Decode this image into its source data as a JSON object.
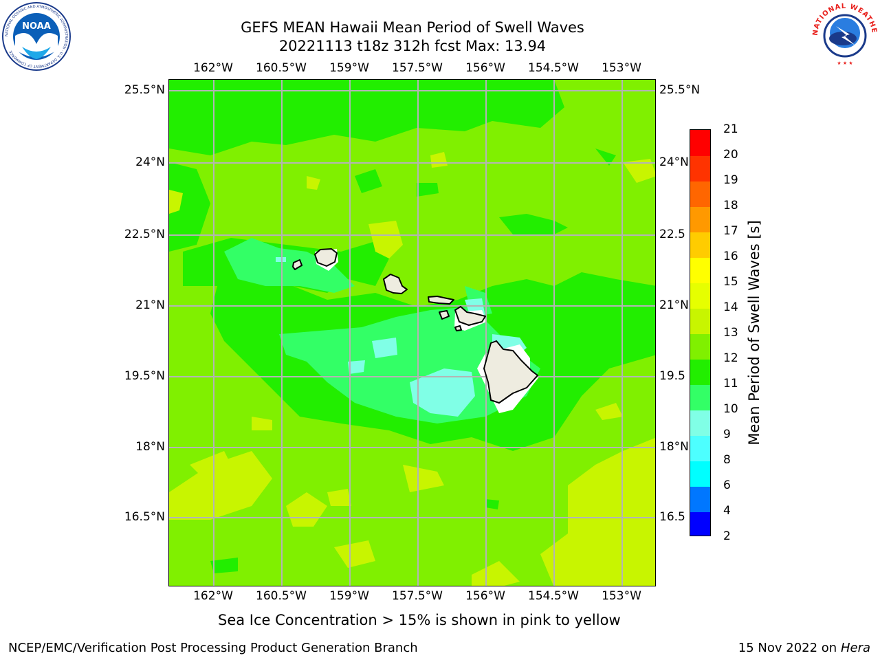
{
  "title_line1": "GEFS MEAN Hawaii Mean Period of Swell Waves",
  "title_line2": "20221113 t18z 312h fcst   Max: 13.94",
  "lon_labels": [
    "162°W",
    "160.5°W",
    "159°W",
    "157.5°W",
    "156°W",
    "154.5°W",
    "153°W"
  ],
  "lat_labels": [
    "25.5°N",
    "24°N",
    "22.5°N",
    "21°N",
    "19.5°N",
    "18°N",
    "16.5°N"
  ],
  "right_lat_labels": [
    "25.5°N",
    "24°N",
    "22.5",
    "21°N",
    "19.5",
    "18°N",
    "16.5"
  ],
  "colorbar": {
    "title": "Mean Period of Swell Waves [s]",
    "tick_labels": [
      "2",
      "4",
      "6",
      "8",
      "9",
      "10",
      "11",
      "12",
      "13",
      "14",
      "15",
      "16",
      "17",
      "18",
      "19",
      "20",
      "21"
    ],
    "colors": [
      "#0000ff",
      "#0077ff",
      "#00ffff",
      "#4dffff",
      "#80ffe6",
      "#33ff66",
      "#22ee00",
      "#80f000",
      "#c8f500",
      "#e6ff00",
      "#ffff00",
      "#ffcc00",
      "#ff9900",
      "#ff6600",
      "#ff3300",
      "#ff0000"
    ]
  },
  "note": "Sea Ice Concentration > 15% is shown in pink to yellow",
  "footer_left": "NCEP/EMC/Verification Post Processing Product Generation Branch",
  "footer_date": "15 Nov 2022 on",
  "footer_host": "Hera",
  "logo_left_text": "NOAA",
  "logo_left_ring": "NATIONAL OCEANIC AND ATMOSPHERIC ADMINISTRATION · U.S. DEPARTMENT OF COMMERCE",
  "logo_right_ring": "NATIONAL WEATHER SERVICE",
  "colors": {
    "land": "#eeece0",
    "grid": "#b4b4b4",
    "base_field": "#80f000"
  }
}
